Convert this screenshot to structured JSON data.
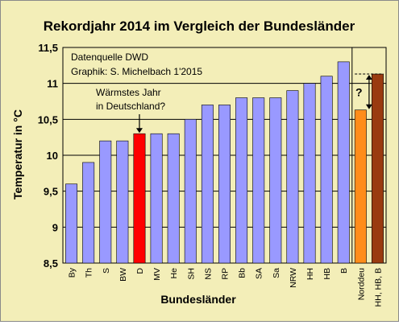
{
  "colors": {
    "background": "#f3eeb8",
    "bar_default": "#9999ff",
    "bar_highlight": "#ff0000",
    "bar_norddeu": "#ff8c1a",
    "bar_hhhbb": "#9a3b10",
    "bar_outline": "#000000",
    "gridline": "#000000"
  },
  "chart_data": {
    "type": "bar",
    "title": "Rekordjahr 2014 im Vergleich der Bundesländer",
    "xlabel": "Bundesländer",
    "ylabel": "Temperatur in °C",
    "ylim": [
      8.5,
      11.5
    ],
    "yticks": [
      "8,5",
      "9",
      "9,5",
      "10",
      "10,5",
      "11",
      "11,5"
    ],
    "grid": "horizontal",
    "categories": [
      "By",
      "Th",
      "S",
      "BW",
      "D",
      "MV",
      "He",
      "SH",
      "NS",
      "RP",
      "Bb",
      "SA",
      "Sa",
      "NRW",
      "HH",
      "HB",
      "B",
      "Norddeu",
      "HH, HB, B"
    ],
    "values": [
      9.6,
      9.9,
      10.2,
      10.2,
      10.3,
      10.3,
      10.3,
      10.5,
      10.7,
      10.7,
      10.8,
      10.8,
      10.8,
      10.9,
      11.0,
      11.1,
      11.3,
      10.63,
      11.13
    ],
    "bar_colors": [
      "default",
      "default",
      "default",
      "default",
      "highlight",
      "default",
      "default",
      "default",
      "default",
      "default",
      "default",
      "default",
      "default",
      "default",
      "default",
      "default",
      "default",
      "norddeu",
      "hhhbb"
    ],
    "annotations": {
      "source": "Datenquelle DWD",
      "credit": "Graphik: S. Michelbach 1'2015",
      "note_line1": "Wärmstes Jahr",
      "note_line2": "in Deutschland?",
      "question": "?"
    }
  }
}
